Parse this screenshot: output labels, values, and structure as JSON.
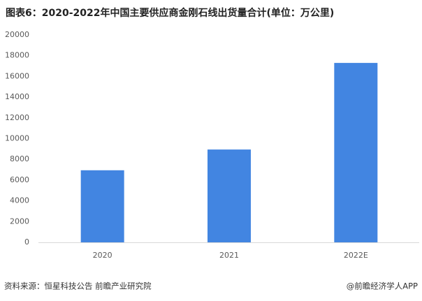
{
  "chart_data": {
    "type": "bar",
    "title": "图表6：2020-2022年中国主要供应商金刚石线出货量合计(单位：万公里)",
    "categories": [
      "2020",
      "2021",
      "2022E"
    ],
    "values": [
      6950,
      8950,
      17300
    ],
    "color": "#4285e1",
    "ylim": [
      0,
      20000
    ],
    "yticks": [
      0,
      2000,
      4000,
      6000,
      8000,
      10000,
      12000,
      14000,
      16000,
      18000,
      20000
    ],
    "grid": false,
    "source": "资料来源：恒星科技公告 前瞻产业研究院",
    "credit": "@前瞻经济学人APP"
  }
}
